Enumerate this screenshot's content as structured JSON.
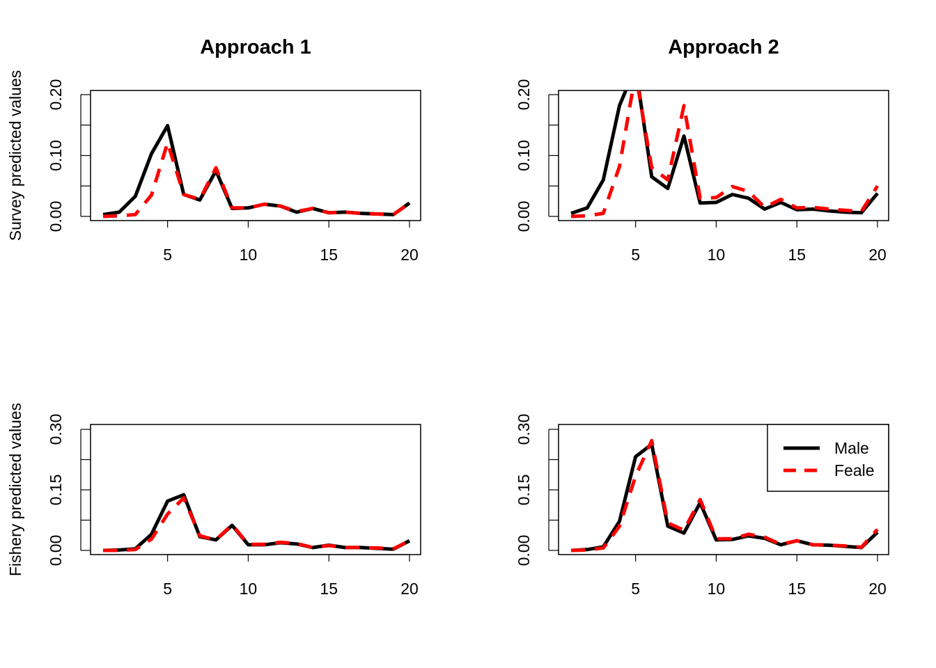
{
  "chart_data": [
    {
      "type": "line",
      "panel": "top-left",
      "title": "Approach 1",
      "xlabel": "",
      "ylabel": "Survey predicted values",
      "xlim": [
        1,
        20
      ],
      "ylim": [
        0,
        0.2
      ],
      "x_ticks": [
        5,
        10,
        15,
        20
      ],
      "y_ticks": [
        0,
        0.05,
        0.1,
        0.15,
        0.2
      ],
      "y_tick_labels": [
        "0.00",
        "",
        "0.10",
        "",
        "0.20"
      ],
      "x": [
        1,
        2,
        3,
        4,
        5,
        6,
        7,
        8,
        9,
        10,
        11,
        12,
        13,
        14,
        15,
        16,
        17,
        18,
        19,
        20
      ],
      "series": [
        {
          "values": [
            0.003,
            0.007,
            0.033,
            0.103,
            0.149,
            0.036,
            0.027,
            0.075,
            0.013,
            0.014,
            0.02,
            0.017,
            0.007,
            0.013,
            0.006,
            0.007,
            0.005,
            0.004,
            0.003,
            0.022
          ]
        },
        {
          "values": [
            0.0,
            0.001,
            0.003,
            0.035,
            0.121,
            0.036,
            0.028,
            0.08,
            0.014,
            0.014,
            0.02,
            0.017,
            0.008,
            0.013,
            0.006,
            0.007,
            0.005,
            0.004,
            0.003,
            0.022
          ]
        }
      ],
      "grid": false
    },
    {
      "type": "line",
      "panel": "top-right",
      "title": "Approach 2",
      "xlabel": "",
      "ylabel": "",
      "xlim": [
        1,
        20
      ],
      "ylim": [
        0,
        0.2
      ],
      "x_ticks": [
        5,
        10,
        15,
        20
      ],
      "y_ticks": [
        0,
        0.05,
        0.1,
        0.15,
        0.2
      ],
      "y_tick_labels": [
        "0.00",
        "",
        "0.10",
        "",
        "0.20"
      ],
      "x": [
        1,
        2,
        3,
        4,
        5,
        6,
        7,
        8,
        9,
        10,
        11,
        12,
        13,
        14,
        15,
        16,
        17,
        18,
        19,
        20
      ],
      "series": [
        {
          "values": [
            0.005,
            0.014,
            0.06,
            0.182,
            0.245,
            0.065,
            0.046,
            0.132,
            0.022,
            0.023,
            0.036,
            0.03,
            0.012,
            0.023,
            0.011,
            0.012,
            0.009,
            0.007,
            0.006,
            0.038
          ]
        },
        {
          "values": [
            0.0,
            0.001,
            0.005,
            0.082,
            0.235,
            0.08,
            0.06,
            0.182,
            0.03,
            0.031,
            0.049,
            0.041,
            0.015,
            0.028,
            0.014,
            0.015,
            0.012,
            0.01,
            0.008,
            0.05
          ]
        }
      ],
      "grid": false
    },
    {
      "type": "line",
      "panel": "bottom-left",
      "title": "",
      "xlabel": "",
      "ylabel": "Fishery predicted values",
      "xlim": [
        1,
        20
      ],
      "ylim": [
        0,
        0.3
      ],
      "x_ticks": [
        5,
        10,
        15,
        20
      ],
      "y_ticks": [
        0,
        0.075,
        0.15,
        0.225,
        0.3
      ],
      "y_tick_labels": [
        "0.00",
        "",
        "0.15",
        "",
        "0.30"
      ],
      "x": [
        1,
        2,
        3,
        4,
        5,
        6,
        7,
        8,
        9,
        10,
        11,
        12,
        13,
        14,
        15,
        16,
        17,
        18,
        19,
        20
      ],
      "series": [
        {
          "values": [
            0.0,
            0.001,
            0.004,
            0.04,
            0.122,
            0.138,
            0.034,
            0.026,
            0.062,
            0.014,
            0.014,
            0.019,
            0.016,
            0.007,
            0.013,
            0.007,
            0.007,
            0.005,
            0.003,
            0.024
          ]
        },
        {
          "values": [
            0.0,
            0.0,
            0.002,
            0.028,
            0.09,
            0.13,
            0.036,
            0.026,
            0.064,
            0.015,
            0.015,
            0.02,
            0.017,
            0.007,
            0.012,
            0.007,
            0.007,
            0.006,
            0.004,
            0.024
          ]
        }
      ],
      "grid": false
    },
    {
      "type": "line",
      "panel": "bottom-right",
      "title": "",
      "xlabel": "",
      "ylabel": "",
      "xlim": [
        1,
        20
      ],
      "ylim": [
        0,
        0.3
      ],
      "x_ticks": [
        5,
        10,
        15,
        20
      ],
      "y_ticks": [
        0,
        0.075,
        0.15,
        0.225,
        0.3
      ],
      "y_tick_labels": [
        "0.00",
        "",
        "0.15",
        "",
        "0.30"
      ],
      "x": [
        1,
        2,
        3,
        4,
        5,
        6,
        7,
        8,
        9,
        10,
        11,
        12,
        13,
        14,
        15,
        16,
        17,
        18,
        19,
        20
      ],
      "series": [
        {
          "values": [
            0.0,
            0.002,
            0.009,
            0.072,
            0.232,
            0.263,
            0.06,
            0.043,
            0.118,
            0.026,
            0.027,
            0.036,
            0.03,
            0.014,
            0.024,
            0.014,
            0.013,
            0.01,
            0.007,
            0.045
          ]
        },
        {
          "values": [
            0.0,
            0.001,
            0.006,
            0.06,
            0.184,
            0.272,
            0.068,
            0.05,
            0.126,
            0.029,
            0.029,
            0.04,
            0.033,
            0.015,
            0.024,
            0.014,
            0.013,
            0.011,
            0.008,
            0.052
          ]
        }
      ],
      "grid": false,
      "legend": {
        "placement": "top-right",
        "entries": [
          {
            "label": "Male",
            "color": "#000000",
            "style": "solid"
          },
          {
            "label": "Feale",
            "color": "#ff0000",
            "style": "dashed"
          }
        ]
      }
    }
  ],
  "colors": {
    "male": "#000000",
    "female": "#ff0000",
    "background": "#ffffff"
  }
}
